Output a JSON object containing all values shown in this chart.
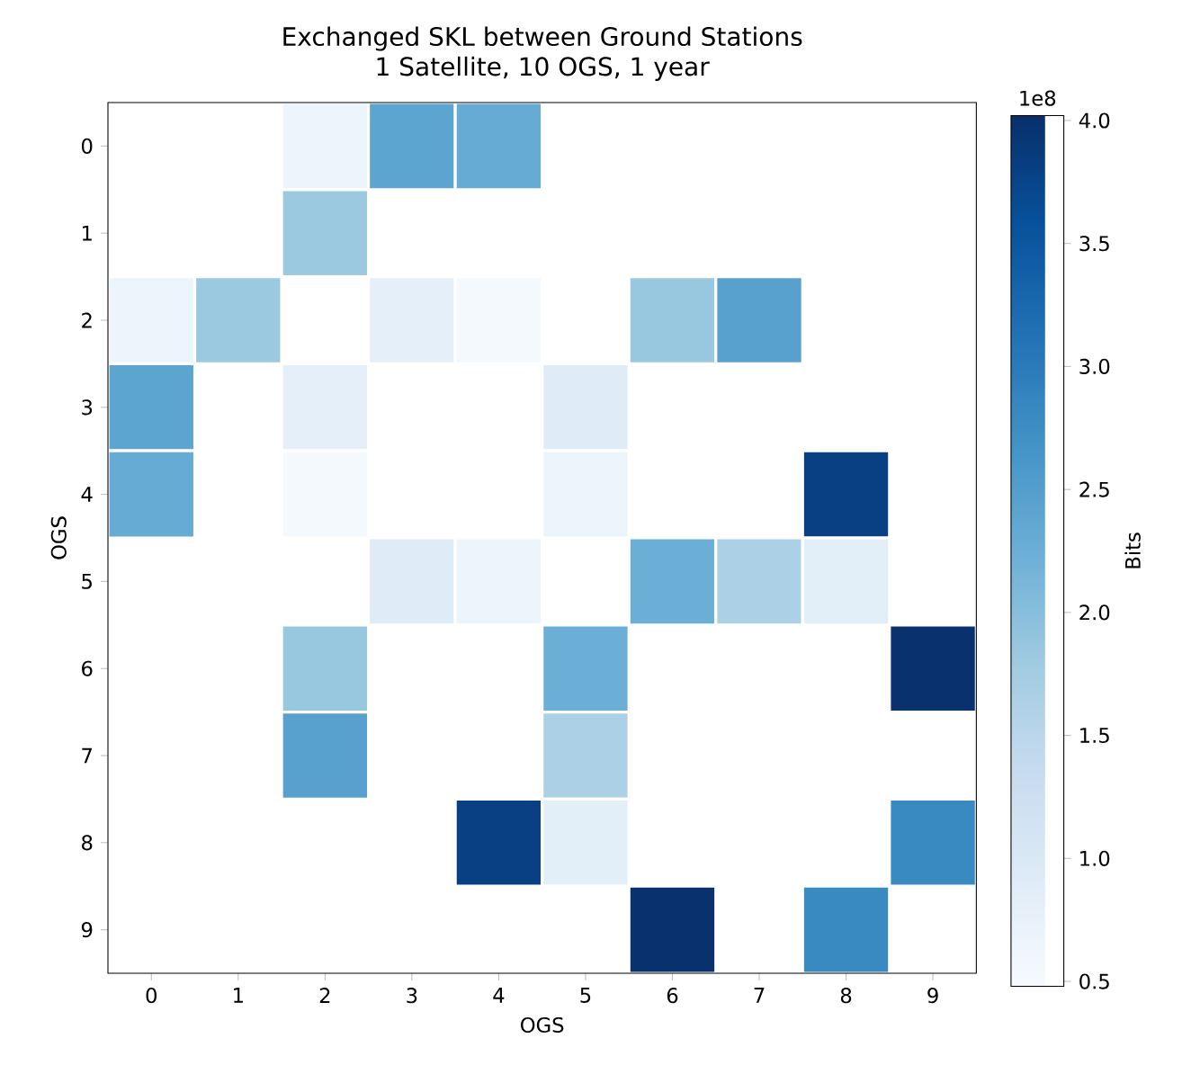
{
  "chart_data": {
    "type": "heatmap",
    "title": "Exchanged SKL between Ground Stations\n1 Satellite, 10 OGS, 1 year",
    "xlabel": "OGS",
    "ylabel": "OGS",
    "clabel": "Bits",
    "annotations": [
      "1e8"
    ],
    "categories": [
      "0",
      "1",
      "2",
      "3",
      "4",
      "5",
      "6",
      "7",
      "8",
      "9"
    ],
    "y_categories": [
      "0",
      "1",
      "2",
      "3",
      "4",
      "5",
      "6",
      "7",
      "8",
      "9"
    ],
    "cells": [
      [
        null,
        null,
        0.65,
        2.4,
        2.3,
        null,
        null,
        null,
        null,
        null
      ],
      [
        null,
        null,
        1.83,
        null,
        null,
        null,
        null,
        null,
        null,
        null
      ],
      [
        0.65,
        1.83,
        null,
        0.8,
        0.53,
        null,
        1.86,
        2.45,
        null,
        null
      ],
      [
        2.4,
        null,
        0.8,
        null,
        null,
        0.9,
        null,
        null,
        null,
        null
      ],
      [
        2.3,
        null,
        0.53,
        null,
        null,
        0.65,
        null,
        null,
        3.8,
        null
      ],
      [
        null,
        null,
        null,
        0.9,
        0.65,
        null,
        2.25,
        1.65,
        0.85,
        null
      ],
      [
        null,
        null,
        1.86,
        null,
        null,
        2.25,
        null,
        null,
        null,
        4.0
      ],
      [
        null,
        null,
        2.45,
        null,
        null,
        1.65,
        null,
        null,
        null,
        null
      ],
      [
        null,
        null,
        null,
        null,
        3.8,
        0.85,
        null,
        null,
        null,
        2.8
      ],
      [
        null,
        null,
        null,
        null,
        null,
        null,
        4.0,
        null,
        2.8,
        null
      ]
    ],
    "clim": [
      0.48,
      4.02
    ],
    "cticks": [
      {
        "value": 0.5,
        "label": "0.5"
      },
      {
        "value": 1.0,
        "label": "1.0"
      },
      {
        "value": 1.5,
        "label": "1.5"
      },
      {
        "value": 2.0,
        "label": "2.0"
      },
      {
        "value": 2.5,
        "label": "2.5"
      },
      {
        "value": 3.0,
        "label": "3.0"
      },
      {
        "value": 3.5,
        "label": "3.5"
      },
      {
        "value": 4.0,
        "label": "4.0"
      }
    ]
  }
}
